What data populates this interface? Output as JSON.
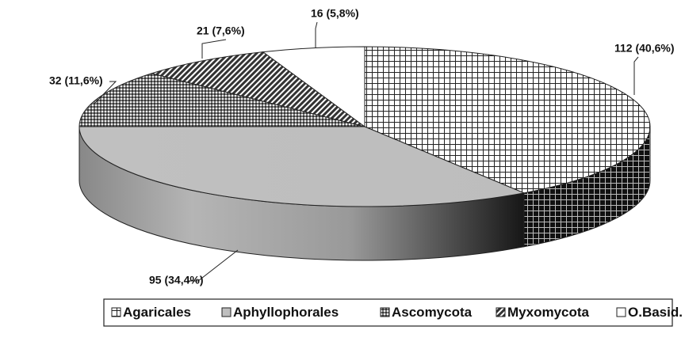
{
  "chart_data": {
    "type": "pie3d",
    "categories": [
      "Agaricales",
      "Aphyllophorales",
      "Ascomycota",
      "Myxomycota",
      "O.Basid."
    ],
    "values": [
      112,
      95,
      32,
      21,
      16
    ],
    "value_labels": [
      "112 (40,6%)",
      "95 (34,4%)",
      "32 (11,6%)",
      "21 (7,6%)",
      "16 (5,8%)"
    ],
    "legend": "bottom"
  }
}
